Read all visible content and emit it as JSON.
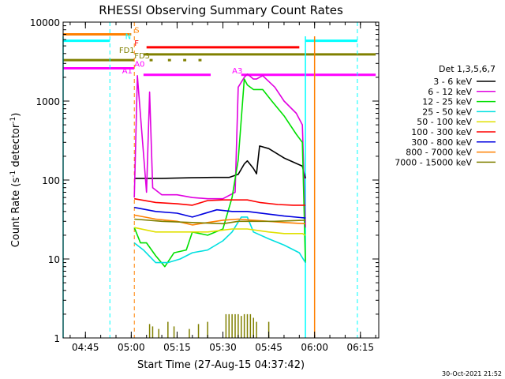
{
  "chart_data": {
    "type": "line",
    "title": "RHESSI Observing Summary Count Rates",
    "xlabel": "Start Time (27-Aug-15 04:37:42)",
    "ylabel_main": "Count Rate (s",
    "ylabel_sup": "-1",
    "ylabel_mid": " detector",
    "ylabel_end": ")",
    "y_scale": "log",
    "xlim": [
      "04:37:42",
      "06:21:00"
    ],
    "ylim": [
      1,
      10000
    ],
    "x_ticks": [
      "04:45",
      "05:00",
      "05:15",
      "05:30",
      "05:45",
      "06:00",
      "06:15"
    ],
    "y_ticks": [
      "1",
      "10",
      "100",
      "1000",
      "10000"
    ],
    "legend_title": "Det 1,3,5,6,7",
    "series": [
      {
        "name": "3 - 6 keV",
        "color": "#000000",
        "x": [
          "05:01",
          "05:10",
          "05:20",
          "05:27",
          "05:32",
          "05:35",
          "05:37",
          "05:38",
          "05:40",
          "05:41",
          "05:42",
          "05:45",
          "05:50",
          "05:56",
          "05:57"
        ],
        "y": [
          105,
          105,
          107,
          108,
          108,
          118,
          160,
          175,
          140,
          120,
          270,
          250,
          190,
          150,
          105
        ]
      },
      {
        "name": "6 - 12 keV",
        "color": "#e000e0",
        "x": [
          "05:01",
          "05:02",
          "05:05",
          "05:06",
          "05:07",
          "05:10",
          "05:15",
          "05:20",
          "05:25",
          "05:30",
          "05:34",
          "05:35",
          "05:37",
          "05:38",
          "05:40",
          "05:41",
          "05:43",
          "05:47",
          "05:50",
          "05:54",
          "05:56",
          "05:57"
        ],
        "y": [
          60,
          2100,
          70,
          1300,
          80,
          65,
          65,
          60,
          58,
          58,
          70,
          1500,
          2000,
          2200,
          1900,
          1900,
          2100,
          1500,
          1000,
          700,
          500,
          25
        ]
      },
      {
        "name": "12 - 25 keV",
        "color": "#00e000",
        "x": [
          "05:01",
          "05:03",
          "05:05",
          "05:08",
          "05:11",
          "05:14",
          "05:18",
          "05:20",
          "05:25",
          "05:30",
          "05:33",
          "05:35",
          "05:37",
          "05:38",
          "05:40",
          "05:41",
          "05:43",
          "05:46",
          "05:50",
          "05:54",
          "05:56",
          "05:57"
        ],
        "y": [
          25,
          16,
          16,
          11,
          8,
          12,
          13,
          22,
          20,
          24,
          60,
          180,
          1900,
          1600,
          1400,
          1400,
          1400,
          1000,
          650,
          380,
          300,
          9
        ]
      },
      {
        "name": "25 - 50 keV",
        "color": "#00e0e0",
        "x": [
          "05:01",
          "05:04",
          "05:08",
          "05:12",
          "05:16",
          "05:20",
          "05:25",
          "05:30",
          "05:33",
          "05:36",
          "05:38",
          "05:40",
          "05:45",
          "05:50",
          "05:55",
          "05:57"
        ],
        "y": [
          16,
          13,
          9,
          9,
          10,
          12,
          13,
          17,
          22,
          34,
          34,
          22,
          18,
          15,
          12,
          9
        ]
      },
      {
        "name": "50 - 100 keV",
        "color": "#e0e000",
        "x": [
          "05:01",
          "05:08",
          "05:15",
          "05:25",
          "05:33",
          "05:38",
          "05:45",
          "05:50",
          "05:56",
          "05:57"
        ],
        "y": [
          25,
          22,
          22,
          22,
          24,
          24,
          22,
          21,
          21,
          20
        ]
      },
      {
        "name": "100 - 300 keV",
        "color": "#ff0000",
        "x": [
          "05:01",
          "05:08",
          "05:15",
          "05:20",
          "05:25",
          "05:30",
          "05:35",
          "05:38",
          "05:42",
          "05:48",
          "05:53",
          "05:57"
        ],
        "y": [
          58,
          52,
          50,
          48,
          55,
          56,
          56,
          56,
          52,
          49,
          48,
          48
        ]
      },
      {
        "name": "300 - 800 keV",
        "color": "#0000e0",
        "x": [
          "05:01",
          "05:08",
          "05:15",
          "05:20",
          "05:28",
          "05:33",
          "05:38",
          "05:45",
          "05:50",
          "05:57"
        ],
        "y": [
          45,
          40,
          38,
          34,
          42,
          40,
          40,
          37,
          35,
          33
        ]
      },
      {
        "name": "800 - 7000 keV",
        "color": "#ff8000",
        "x": [
          "05:01",
          "05:08",
          "05:15",
          "05:20",
          "05:25",
          "05:30",
          "05:35",
          "05:40",
          "05:45",
          "05:50",
          "05:57"
        ],
        "y": [
          36,
          32,
          30,
          27,
          29,
          31,
          32,
          31,
          30,
          29,
          28
        ]
      },
      {
        "name": "7000 - 15000 keV",
        "color": "#808000",
        "x": [
          "05:01",
          "05:10",
          "05:20",
          "05:30",
          "05:35",
          "05:40",
          "05:47",
          "05:57"
        ],
        "y": [
          32,
          30,
          29,
          28,
          30,
          30,
          30,
          31
        ]
      }
    ],
    "spikes": {
      "color": "#808000",
      "note_value_floor": 1,
      "x": [
        "05:06",
        "05:07",
        "05:09",
        "05:12",
        "05:14",
        "05:19",
        "05:22",
        "05:25",
        "05:31",
        "05:32",
        "05:33",
        "05:34",
        "05:35",
        "05:36",
        "05:37",
        "05:38",
        "05:39",
        "05:40",
        "05:41",
        "05:45"
      ],
      "y": [
        1.5,
        1.4,
        1.3,
        1.6,
        1.4,
        1.3,
        1.5,
        1.6,
        2.0,
        2.0,
        2.0,
        2.0,
        2.0,
        1.9,
        2.0,
        2.0,
        2.0,
        1.8,
        1.6,
        1.6
      ]
    },
    "flags": [
      {
        "label": "S",
        "color": "#ff8000",
        "segments": [
          [
            "04:37:42",
            "05:00"
          ]
        ],
        "level": 7000,
        "label_at": "05:01"
      },
      {
        "label": "N",
        "color": "#00ffff",
        "segments": [
          [
            "04:37:42",
            "04:53"
          ],
          [
            "05:57",
            "06:14"
          ]
        ],
        "level": 5800,
        "label_at": "04:58"
      },
      {
        "label": "F",
        "color": "#ff0000",
        "segments": [
          [
            "05:05",
            "05:55"
          ]
        ],
        "level": 4800,
        "label_at": "05:01"
      },
      {
        "label": "FD1",
        "color": "#808000",
        "segments": [
          [
            "05:04",
            "06:20"
          ]
        ],
        "level": 3900,
        "label_at": "04:56"
      },
      {
        "label": "FD3",
        "color": "#808000",
        "segments": [
          [
            "04:37:42",
            "05:01"
          ],
          [
            "05:06",
            "05:07"
          ],
          [
            "05:12",
            "05:13"
          ],
          [
            "05:17",
            "05:18"
          ],
          [
            "05:22",
            "05:23"
          ]
        ],
        "level": 3300,
        "label_at": "05:01"
      },
      {
        "label": "A0",
        "color": "#ff00ff",
        "segments": [
          [
            "04:37:42",
            "05:01"
          ]
        ],
        "level": 2600,
        "label_at": "05:01"
      },
      {
        "label": "A1",
        "color": "#ff00ff",
        "segments": [
          [
            "05:04",
            "05:26"
          ]
        ],
        "level": 2150,
        "label_at": "04:57"
      },
      {
        "label": "A3",
        "color": "#ff00ff",
        "segments": [
          [
            "05:36",
            "06:20"
          ]
        ],
        "level": 2150,
        "label_at": "05:33"
      }
    ],
    "vertical_lines": [
      {
        "x": "04:53",
        "color": "#00ffff",
        "style": "dashed"
      },
      {
        "x": "05:01",
        "color": "#ff8000",
        "style": "dashed"
      },
      {
        "x": "06:14",
        "color": "#00ffff",
        "style": "dashed"
      }
    ],
    "saa_bars": [
      {
        "x": "04:37:42",
        "color": "#00ffff"
      },
      {
        "x": "05:57",
        "color": "#00ffff"
      },
      {
        "x": "06:00",
        "color": "#ff8000"
      }
    ],
    "timestamp": "30-Oct-2021 21:52"
  }
}
